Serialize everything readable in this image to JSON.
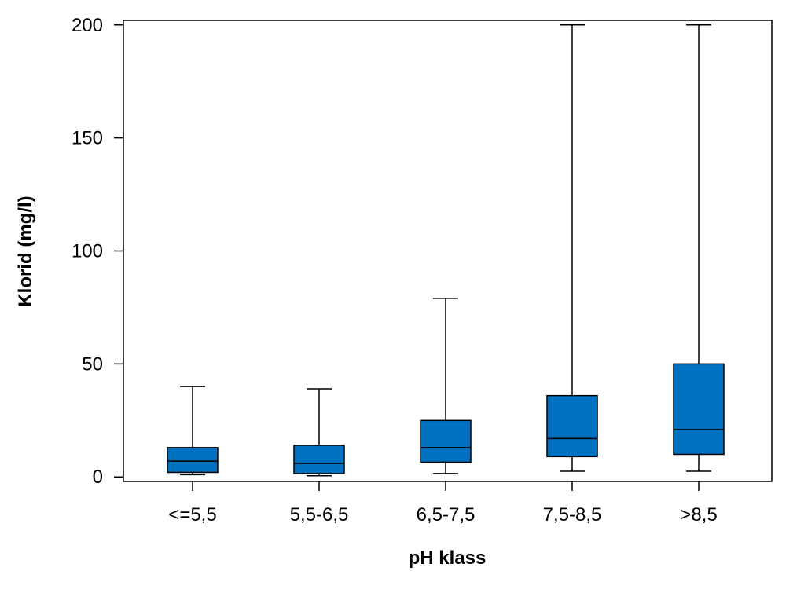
{
  "chart_data": {
    "type": "boxplot",
    "title": "",
    "xlabel": "pH klass",
    "ylabel": "Klorid (mg/l)",
    "ylim": [
      -2,
      202
    ],
    "yticks": [
      0,
      50,
      100,
      150,
      200
    ],
    "grid": false,
    "categories": [
      "<=5,5",
      "5,5-6,5",
      "6,5-7,5",
      "7,5-8,5",
      ">8,5"
    ],
    "boxes": [
      {
        "min": 1,
        "q1": 2,
        "median": 7,
        "q3": 13,
        "max": 40
      },
      {
        "min": 0.5,
        "q1": 1.5,
        "median": 6,
        "q3": 14,
        "max": 39
      },
      {
        "min": 1.5,
        "q1": 6.5,
        "median": 13,
        "q3": 25,
        "max": 79
      },
      {
        "min": 2.5,
        "q1": 9,
        "median": 17,
        "q3": 36,
        "max": 200
      },
      {
        "min": 2.5,
        "q1": 10,
        "median": 21,
        "q3": 50,
        "max": 200
      }
    ],
    "colors": {
      "box_fill": "#0070C0",
      "stroke": "#000000",
      "background": "#ffffff"
    }
  }
}
